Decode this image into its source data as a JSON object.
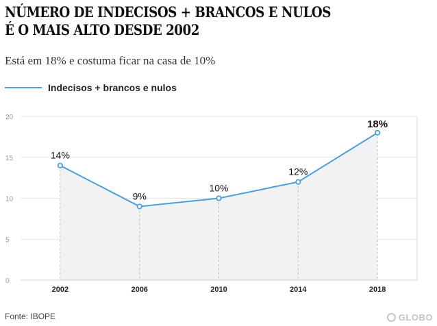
{
  "header": {
    "title_line1": "NÚMERO DE INDECISOS + BRANCOS E NULOS",
    "title_line2": "É O MAIS ALTO DESDE 2002",
    "subtitle": "Está em 18% e costuma ficar na casa de 10%"
  },
  "legend": {
    "label": "Indecisos + brancos e nulos",
    "color": "#4a9fdc"
  },
  "chart_data": {
    "type": "line",
    "title": "NÚMERO DE INDECISOS + BRANCOS E NULOS É O MAIS ALTO DESDE 2002",
    "subtitle": "Está em 18% e costuma ficar na casa de 10%",
    "xlabel": "",
    "ylabel": "",
    "categories": [
      "2002",
      "2006",
      "2010",
      "2014",
      "2018"
    ],
    "series": [
      {
        "name": "Indecisos + brancos e nulos",
        "values": [
          14,
          9,
          10,
          12,
          18
        ],
        "labels": [
          "14%",
          "9%",
          "10%",
          "12%",
          "18%"
        ],
        "highlight_last": true
      }
    ],
    "ylim": [
      0,
      20
    ],
    "yticks": [
      "0",
      "5",
      "10",
      "15",
      "20"
    ],
    "grid": true,
    "legend": "top-left",
    "line_color": "#4a9fdc",
    "fill_color": "#f2f2f5"
  },
  "footer": {
    "source": "Fonte: IBOPE",
    "brand": "GLOBO",
    "brand_prefix": "O"
  }
}
